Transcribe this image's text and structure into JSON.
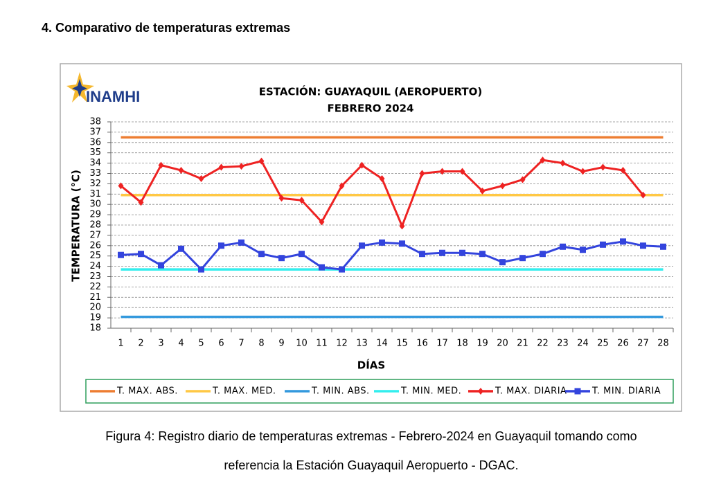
{
  "heading": "4. Comparativo de temperaturas extremas",
  "logo": "INAMHI",
  "chart_data": {
    "type": "line",
    "title": "ESTACIÓN: GUAYAQUIL (AEROPUERTO)",
    "subtitle": "FEBRERO 2024",
    "x_label": "DÍAS",
    "y_label": "TEMPERATURA (°C)",
    "categories": [
      "1",
      "2",
      "3",
      "4",
      "5",
      "6",
      "7",
      "8",
      "9",
      "10",
      "11",
      "12",
      "13",
      "14",
      "15",
      "16",
      "17",
      "18",
      "19",
      "20",
      "21",
      "22",
      "23",
      "24",
      "25",
      "26",
      "27",
      "28"
    ],
    "ylim": [
      18,
      38
    ],
    "yticks": [
      18,
      19,
      20,
      21,
      22,
      23,
      24,
      25,
      26,
      27,
      28,
      29,
      30,
      31,
      32,
      33,
      34,
      35,
      36,
      37,
      38
    ],
    "grid": true,
    "legend": "bottom",
    "series": [
      {
        "name": "T. MAX. ABS.",
        "color": "#ed7d31",
        "marker": "none",
        "values": [
          36.5,
          36.5,
          36.5,
          36.5,
          36.5,
          36.5,
          36.5,
          36.5,
          36.5,
          36.5,
          36.5,
          36.5,
          36.5,
          36.5,
          36.5,
          36.5,
          36.5,
          36.5,
          36.5,
          36.5,
          36.5,
          36.5,
          36.5,
          36.5,
          36.5,
          36.5,
          36.5,
          36.5
        ]
      },
      {
        "name": "T. MAX. MED.",
        "color": "#ffc845",
        "marker": "none",
        "values": [
          30.9,
          30.9,
          30.9,
          30.9,
          30.9,
          30.9,
          30.9,
          30.9,
          30.9,
          30.9,
          30.9,
          30.9,
          30.9,
          30.9,
          30.9,
          30.9,
          30.9,
          30.9,
          30.9,
          30.9,
          30.9,
          30.9,
          30.9,
          30.9,
          30.9,
          30.9,
          30.9,
          30.9
        ]
      },
      {
        "name": "T. MIN. ABS.",
        "color": "#3399dd",
        "marker": "none",
        "values": [
          19.1,
          19.1,
          19.1,
          19.1,
          19.1,
          19.1,
          19.1,
          19.1,
          19.1,
          19.1,
          19.1,
          19.1,
          19.1,
          19.1,
          19.1,
          19.1,
          19.1,
          19.1,
          19.1,
          19.1,
          19.1,
          19.1,
          19.1,
          19.1,
          19.1,
          19.1,
          19.1,
          19.1
        ]
      },
      {
        "name": "T. MIN. MED.",
        "color": "#33eeee",
        "marker": "none",
        "values": [
          23.7,
          23.7,
          23.7,
          23.7,
          23.7,
          23.7,
          23.7,
          23.7,
          23.7,
          23.7,
          23.7,
          23.7,
          23.7,
          23.7,
          23.7,
          23.7,
          23.7,
          23.7,
          23.7,
          23.7,
          23.7,
          23.7,
          23.7,
          23.7,
          23.7,
          23.7,
          23.7,
          23.7
        ]
      },
      {
        "name": "T. MAX. DIARIA",
        "color": "#ee2222",
        "marker": "diamond",
        "values": [
          31.8,
          30.2,
          33.8,
          33.3,
          32.5,
          33.6,
          33.7,
          34.2,
          30.6,
          30.4,
          28.3,
          31.8,
          33.8,
          32.5,
          27.9,
          33.0,
          33.2,
          33.2,
          31.3,
          31.8,
          32.4,
          34.3,
          34.0,
          33.2,
          33.6,
          33.3,
          30.9,
          null
        ]
      },
      {
        "name": "T. MIN. DIARIA",
        "color": "#3344dd",
        "marker": "square",
        "values": [
          25.1,
          25.2,
          24.1,
          25.7,
          23.7,
          26.0,
          26.3,
          25.2,
          24.8,
          25.2,
          23.9,
          23.7,
          26.0,
          26.3,
          26.2,
          25.2,
          25.3,
          25.3,
          25.2,
          24.4,
          24.8,
          25.2,
          25.9,
          25.6,
          26.1,
          26.4,
          26.0,
          25.9
        ]
      }
    ]
  },
  "caption": [
    "Figura 4: Registro diario de temperaturas extremas - Febrero-2024 en Guayaquil tomando como",
    "referencia la Estación Guayaquil Aeropuerto - DGAC."
  ]
}
